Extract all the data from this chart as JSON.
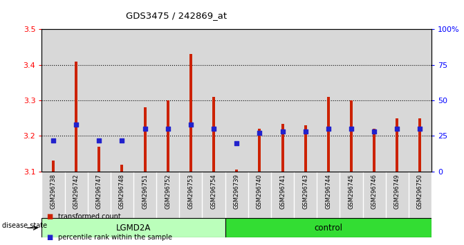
{
  "title": "GDS3475 / 242869_at",
  "samples": [
    "GSM296738",
    "GSM296742",
    "GSM296747",
    "GSM296748",
    "GSM296751",
    "GSM296752",
    "GSM296753",
    "GSM296754",
    "GSM296739",
    "GSM296740",
    "GSM296741",
    "GSM296743",
    "GSM296744",
    "GSM296745",
    "GSM296746",
    "GSM296749",
    "GSM296750"
  ],
  "transformed_count": [
    3.13,
    3.41,
    3.17,
    3.12,
    3.28,
    3.3,
    3.43,
    3.31,
    3.105,
    3.22,
    3.235,
    3.23,
    3.31,
    3.3,
    3.22,
    3.25,
    3.25
  ],
  "percentile_rank": [
    22,
    33,
    22,
    22,
    30,
    30,
    33,
    30,
    20,
    27,
    28,
    28,
    30,
    30,
    28,
    30,
    30
  ],
  "n_lgmd2a": 8,
  "ylim_left": [
    3.1,
    3.5
  ],
  "ylim_right": [
    0,
    100
  ],
  "yticks_left": [
    3.1,
    3.2,
    3.3,
    3.4,
    3.5
  ],
  "yticks_right": [
    0,
    25,
    50,
    75,
    100
  ],
  "bar_color": "#cc2200",
  "dot_color": "#2222cc",
  "lgmd2a_color": "#bbffbb",
  "control_color": "#33dd33",
  "col_bg_color": "#d8d8d8",
  "legend_bar": "transformed count",
  "legend_dot": "percentile rank within the sample",
  "disease_label": "disease state",
  "lgmd2a_label": "LGMD2A",
  "control_label": "control"
}
